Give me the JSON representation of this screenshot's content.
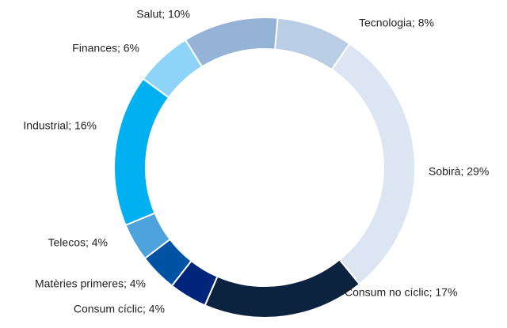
{
  "chart_data": {
    "type": "donut",
    "value_labels": [
      "Tecnologia; 8%",
      "Sobirà; 29%",
      "Consum no cíclic; 17%",
      "Consum cíclic; 4%",
      "Matèries primeres; 4%",
      "Telecos; 4%",
      "Industrial; 16%",
      "Finances; 6%",
      "Salut; 10%"
    ],
    "values": [
      8,
      29,
      17,
      4,
      4,
      4,
      16,
      6,
      10
    ],
    "colors": [
      "#b9cde5",
      "#dce6f2",
      "#0c2340",
      "#00257a",
      "#0053a4",
      "#4fa3dc",
      "#00b0f0",
      "#8ed4f8",
      "#95b3d7"
    ]
  }
}
